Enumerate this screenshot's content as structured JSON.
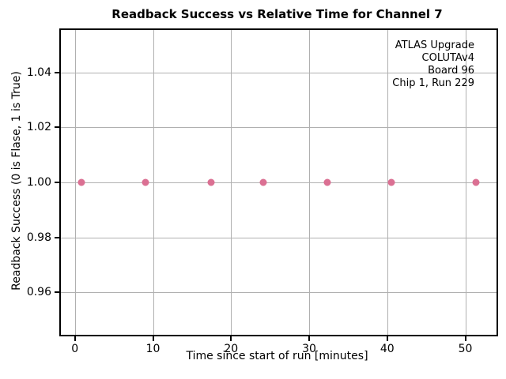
{
  "chart_data": {
    "type": "scatter",
    "title": "Readback Success vs Relative Time for Channel 7",
    "xlabel": "Time since start of run [minutes]",
    "ylabel": "Readback Success (0 is Flase, 1 is True)",
    "x": [
      0.8,
      9.0,
      17.4,
      24.1,
      32.3,
      40.5,
      51.4
    ],
    "y": [
      1.0,
      1.0,
      1.0,
      1.0,
      1.0,
      1.0,
      1.0
    ],
    "xlim": [
      -1.8,
      54.0
    ],
    "ylim": [
      0.9445,
      1.0555
    ],
    "xticks": [
      {
        "value": 0,
        "label": "0"
      },
      {
        "value": 10,
        "label": "10"
      },
      {
        "value": 20,
        "label": "20"
      },
      {
        "value": 30,
        "label": "30"
      },
      {
        "value": 40,
        "label": "40"
      },
      {
        "value": 50,
        "label": "50"
      }
    ],
    "yticks": [
      {
        "value": 0.96,
        "label": "0.96"
      },
      {
        "value": 0.98,
        "label": "0.98"
      },
      {
        "value": 1.0,
        "label": "1.00"
      },
      {
        "value": 1.02,
        "label": "1.02"
      },
      {
        "value": 1.04,
        "label": "1.04"
      }
    ],
    "grid": true,
    "legend": false,
    "marker_color": "#db7093",
    "grid_color": "#b0b0b0",
    "annotation_lines": [
      "ATLAS Upgrade",
      "COLUTAv4",
      "Board 96",
      "Chip 1, Run 229"
    ]
  }
}
